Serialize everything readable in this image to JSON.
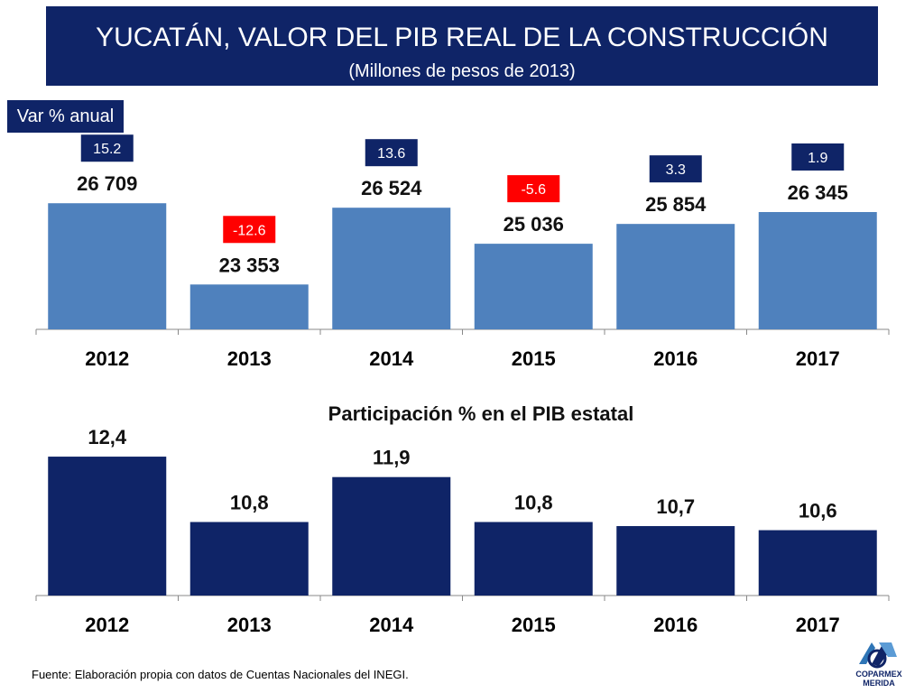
{
  "header": {
    "title": "YUCATÁN, VALOR DEL PIB REAL DE LA CONSTRUCCIÓN",
    "subtitle": "(Millones de pesos de 2013)"
  },
  "badge": {
    "label": "Var % anual"
  },
  "colors": {
    "navy": "#0f2467",
    "bar_top": "#4f81bd",
    "bar_bottom": "#0f2467",
    "negative": "#ff0000"
  },
  "chart_data": [
    {
      "type": "bar",
      "title": "YUCATÁN, VALOR DEL PIB REAL DE LA CONSTRUCCIÓN",
      "subtitle": "(Millones de pesos de 2013)",
      "categories": [
        "2012",
        "2013",
        "2014",
        "2015",
        "2016",
        "2017"
      ],
      "values": [
        26709,
        23353,
        26524,
        25036,
        25854,
        26345
      ],
      "value_labels": [
        "26 709",
        "23 353",
        "26 524",
        "25 036",
        "25 854",
        "26 345"
      ],
      "annual_change_pct": [
        15.2,
        -12.6,
        13.6,
        -5.6,
        3.3,
        1.9
      ],
      "annual_change_labels": [
        "15.2",
        "-12.6",
        "13.6",
        "-5.6",
        "3.3",
        "1.9"
      ],
      "ylim": [
        21500,
        27500
      ],
      "xlabel": "",
      "ylabel": "",
      "grid": false
    },
    {
      "type": "bar",
      "title": "Participación % en el PIB estatal",
      "categories": [
        "2012",
        "2013",
        "2014",
        "2015",
        "2016",
        "2017"
      ],
      "values": [
        12.4,
        10.8,
        11.9,
        10.8,
        10.7,
        10.6
      ],
      "value_labels": [
        "12,4",
        "10,8",
        "11,9",
        "10,8",
        "10,7",
        "10,6"
      ],
      "ylim": [
        9.0,
        12.6
      ],
      "xlabel": "",
      "ylabel": "",
      "grid": false
    }
  ],
  "footer": {
    "source": "Fuente: Elaboración propia con datos de Cuentas Nacionales del INEGI.",
    "logo_line1": "COPARMEX",
    "logo_line2": "MERIDA"
  }
}
